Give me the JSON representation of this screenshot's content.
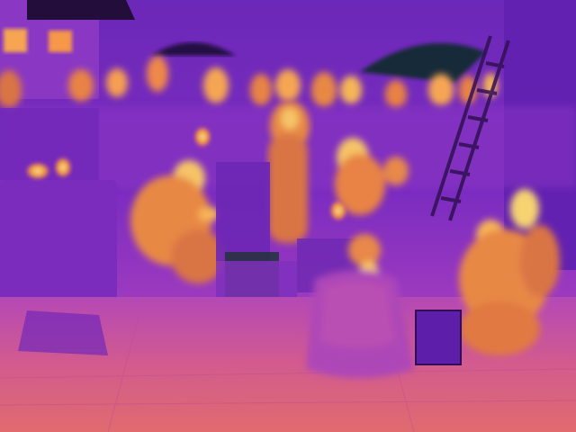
{
  "image": {
    "kind": "thermal camera photograph",
    "palette": "ironbow",
    "palette_colors": {
      "cold": "#2a0a5e",
      "cool": "#5a1aa8",
      "mid": "#8a2fc8",
      "warm": "#c04fb4",
      "hot": "#f08a3a",
      "hottest": "#ffe06a"
    }
  }
}
